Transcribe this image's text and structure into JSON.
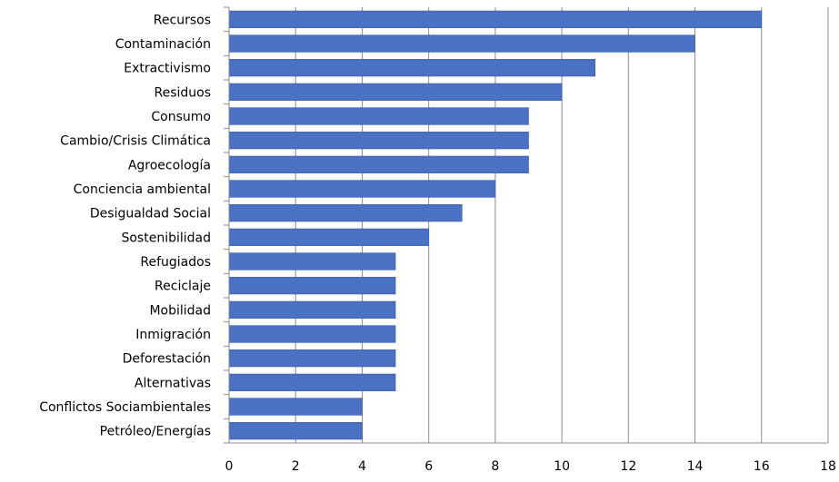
{
  "chart_data": {
    "type": "bar",
    "orientation": "horizontal",
    "title": "",
    "xlabel": "",
    "ylabel": "",
    "categories": [
      "Recursos",
      "Contaminación",
      "Extractivismo",
      "Residuos",
      "Consumo",
      "Cambio/Crisis Climática",
      "Agroecología",
      "Conciencia ambiental",
      "Desigualdad Social",
      "Sostenibilidad",
      "Refugiados",
      "Reciclaje",
      "Mobilidad",
      "Inmigración",
      "Deforestación",
      "Alternativas",
      "Conflictos Sociambientales",
      "Petróleo/Energías"
    ],
    "values": [
      16,
      14,
      11,
      10,
      9,
      9,
      9,
      8,
      7,
      6,
      5,
      5,
      5,
      5,
      5,
      5,
      4,
      4
    ],
    "xlim": [
      0,
      18
    ],
    "xticks": [
      "0",
      "2",
      "4",
      "6",
      "8",
      "10",
      "12",
      "14",
      "16",
      "18"
    ],
    "grid": "vertical",
    "legend": "none",
    "colors": {
      "bar_fill": "#4a71c4",
      "bar_stroke": "#3a5ea6",
      "grid": "#8c8c8c",
      "axis": "#8c8c8c"
    }
  }
}
